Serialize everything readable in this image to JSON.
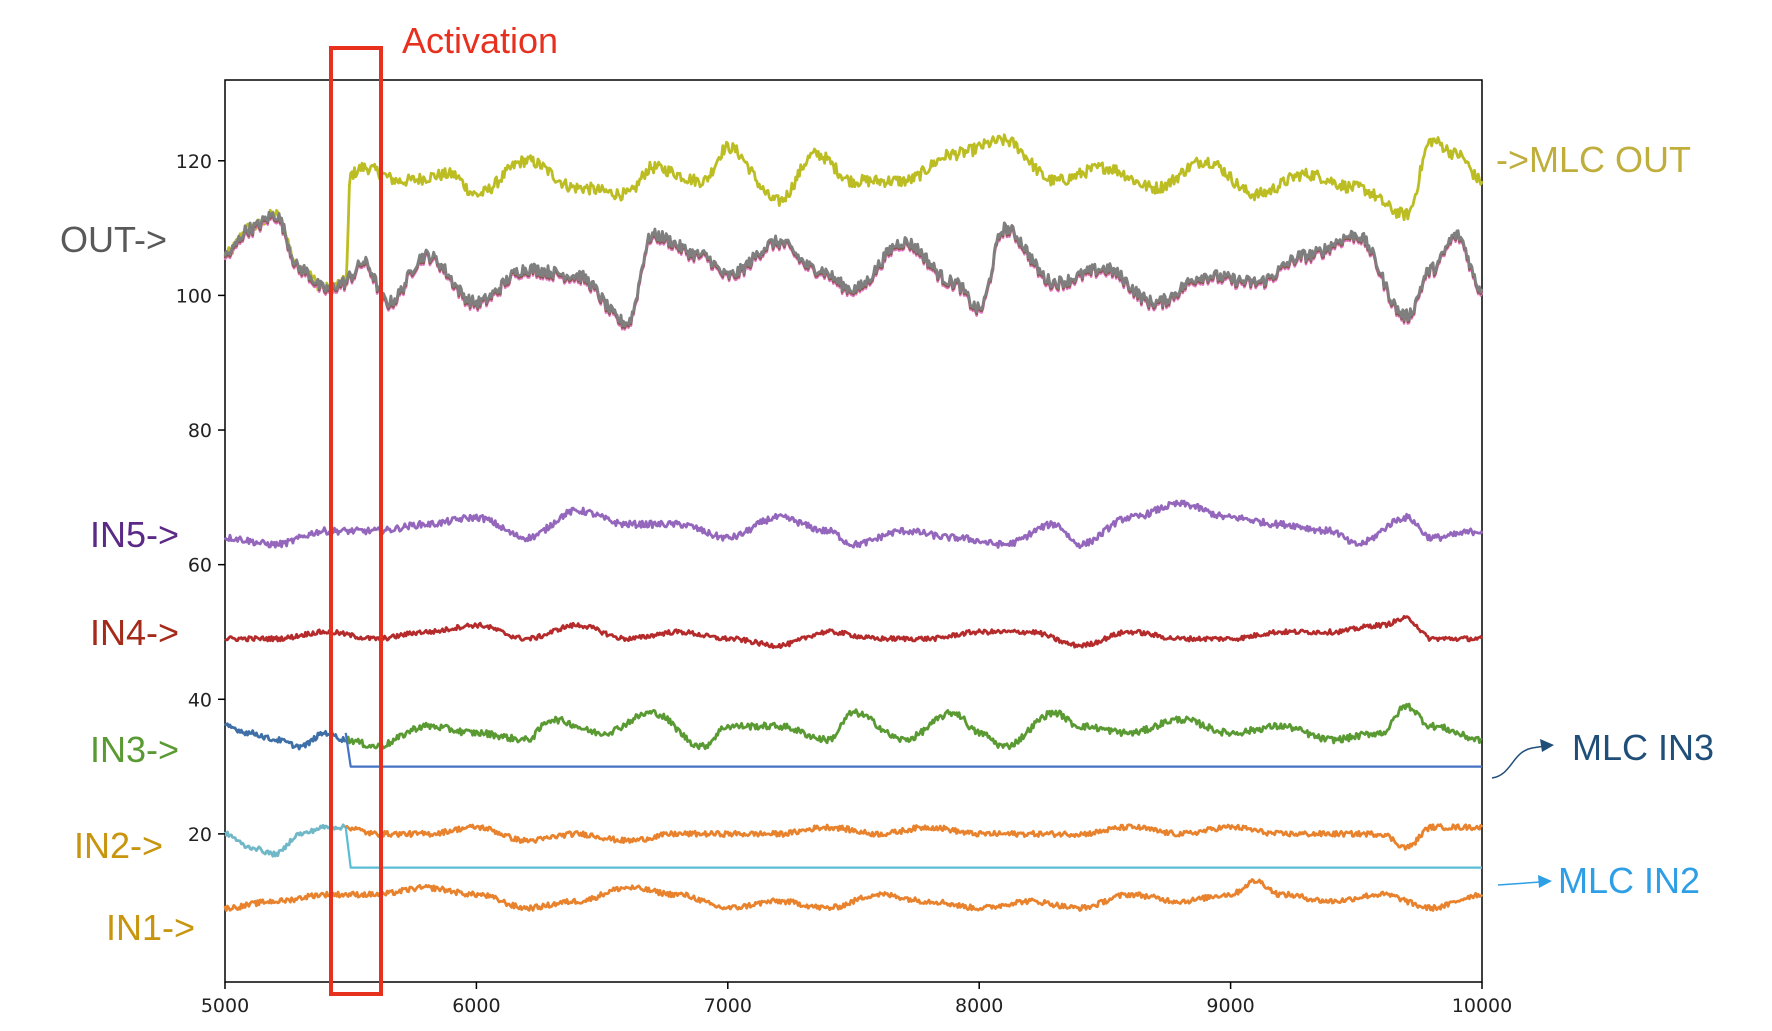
{
  "colors": {
    "mlc_out": "#bcbd22",
    "out": "#7f7f7f",
    "out_shadow_pink": "#e377c2",
    "out_shadow_brown": "#8c564b",
    "in5": "#9467bd",
    "in4": "#b52b2b",
    "in3": "#5a9a33",
    "in3_before": "#3e6fa6",
    "mlc_in3": "#4472c4",
    "in2": "#e8822c",
    "in2_before": "#70b8c8",
    "mlc_in2": "#5bbcd6",
    "in1": "#e8822c",
    "activation": "#e8301e",
    "label_mlc_out": "#bfae3c",
    "label_out": "#595959",
    "label_in5": "#5b2a86",
    "label_in4": "#a52a1a",
    "label_in3": "#5a9a33",
    "label_in2": "#c8950e",
    "label_in1": "#c8950e",
    "label_mlc_in3": "#1f4e79",
    "label_mlc_in2": "#2e9fe6"
  },
  "chart_data": {
    "type": "line",
    "xlim": [
      5000,
      10000
    ],
    "ylim": [
      -2,
      132
    ],
    "x_ticks": [
      5000,
      6000,
      7000,
      8000,
      9000,
      10000
    ],
    "y_ticks": [
      20,
      40,
      60,
      80,
      100,
      120
    ],
    "x_tick_labels": [
      "5000",
      "6000",
      "7000",
      "8000",
      "9000",
      "10000"
    ],
    "y_tick_labels": [
      "20",
      "40",
      "60",
      "80",
      "100",
      "120"
    ],
    "activation": {
      "label": "Activation",
      "x_start": 5420,
      "x_end": 5620
    },
    "series": [
      {
        "key": "mlc_out",
        "color_key": "mlc_out",
        "x": [
          5000,
          5100,
          5200,
          5300,
          5400,
          5480,
          5500,
          5550,
          5700,
          5900,
          6000,
          6200,
          6400,
          6600,
          6700,
          6900,
          7000,
          7200,
          7350,
          7500,
          7700,
          7900,
          8100,
          8300,
          8500,
          8700,
          8900,
          9100,
          9300,
          9500,
          9700,
          9800,
          9900,
          10000
        ],
        "y": [
          106,
          110,
          112,
          104,
          101,
          102,
          118,
          119,
          117,
          118,
          115,
          120,
          116,
          115,
          119,
          117,
          122,
          114,
          121,
          117,
          117,
          121,
          123,
          117,
          119,
          116,
          120,
          115,
          118,
          116,
          112,
          123,
          121,
          117
        ]
      },
      {
        "key": "out",
        "color_key": "out",
        "x": [
          5000,
          5100,
          5200,
          5300,
          5400,
          5480,
          5500,
          5550,
          5650,
          5800,
          6000,
          6200,
          6400,
          6600,
          6700,
          6900,
          7000,
          7200,
          7350,
          7500,
          7700,
          7900,
          8000,
          8100,
          8300,
          8500,
          8700,
          8900,
          9100,
          9300,
          9500,
          9700,
          9800,
          9900,
          10000
        ],
        "y": [
          106,
          110,
          112,
          104,
          101,
          102,
          103,
          105,
          99,
          106,
          99,
          104,
          103,
          96,
          109,
          106,
          103,
          108,
          104,
          101,
          108,
          102,
          98,
          110,
          102,
          104,
          99,
          103,
          102,
          106,
          109,
          97,
          104,
          109,
          101
        ]
      },
      {
        "key": "in5",
        "color_key": "in5",
        "x": [
          5000,
          5200,
          5400,
          5600,
          5800,
          6000,
          6200,
          6400,
          6600,
          6800,
          7000,
          7200,
          7400,
          7500,
          7700,
          7900,
          8100,
          8300,
          8400,
          8600,
          8800,
          9000,
          9200,
          9400,
          9500,
          9700,
          9800,
          10000
        ],
        "y": [
          64,
          63,
          65,
          65,
          66,
          67,
          64,
          68,
          66,
          66,
          64,
          67,
          65,
          63,
          65,
          64,
          63,
          66,
          63,
          67,
          69,
          67,
          66,
          65,
          63,
          67,
          64,
          65
        ]
      },
      {
        "key": "in4",
        "color_key": "in4",
        "x": [
          5000,
          5200,
          5400,
          5600,
          5800,
          6000,
          6200,
          6400,
          6600,
          6800,
          7000,
          7200,
          7400,
          7600,
          7800,
          8000,
          8200,
          8400,
          8600,
          8800,
          9000,
          9200,
          9400,
          9600,
          9700,
          9800,
          10000
        ],
        "y": [
          49,
          49,
          50,
          49,
          50,
          51,
          49,
          51,
          49,
          50,
          49,
          48,
          50,
          49,
          49,
          50,
          50,
          48,
          50,
          49,
          49,
          50,
          50,
          51,
          52,
          49,
          49
        ]
      },
      {
        "key": "in3_before",
        "color_key": "in3_before",
        "x": [
          5000,
          5100,
          5200,
          5300,
          5400,
          5480
        ],
        "y": [
          36,
          35,
          34,
          33,
          35,
          34
        ]
      },
      {
        "key": "in3",
        "color_key": "in3",
        "x": [
          5480,
          5600,
          5800,
          6000,
          6200,
          6300,
          6500,
          6700,
          6900,
          7000,
          7200,
          7400,
          7500,
          7700,
          7900,
          8000,
          8100,
          8300,
          8400,
          8600,
          8800,
          9000,
          9200,
          9400,
          9600,
          9700,
          9800,
          10000
        ],
        "y": [
          34,
          33,
          36,
          35,
          34,
          37,
          35,
          38,
          33,
          36,
          36,
          34,
          38,
          34,
          38,
          35,
          33,
          38,
          36,
          35,
          37,
          35,
          36,
          34,
          35,
          39,
          36,
          34
        ]
      },
      {
        "key": "mlc_in3",
        "color_key": "mlc_in3",
        "x": [
          5480,
          5500,
          10000
        ],
        "y": [
          35,
          30,
          30
        ]
      },
      {
        "key": "in2_before",
        "color_key": "in2_before",
        "x": [
          5000,
          5100,
          5200,
          5300,
          5400,
          5480
        ],
        "y": [
          20,
          18,
          17,
          20,
          21,
          21
        ]
      },
      {
        "key": "in2",
        "color_key": "in2",
        "x": [
          5480,
          5600,
          5800,
          6000,
          6200,
          6400,
          6600,
          6800,
          7000,
          7200,
          7400,
          7600,
          7800,
          8000,
          8200,
          8400,
          8600,
          8800,
          9000,
          9200,
          9400,
          9600,
          9700,
          9800,
          10000
        ],
        "y": [
          21,
          20,
          20,
          21,
          19,
          20,
          19,
          20,
          20,
          20,
          21,
          20,
          21,
          20,
          20,
          20,
          21,
          20,
          21,
          20,
          20,
          20,
          18,
          21,
          21
        ]
      },
      {
        "key": "mlc_in2",
        "color_key": "mlc_in2",
        "x": [
          5480,
          5500,
          10000
        ],
        "y": [
          21,
          15,
          15
        ]
      },
      {
        "key": "in1",
        "color_key": "in1",
        "x": [
          5000,
          5200,
          5400,
          5600,
          5800,
          6000,
          6200,
          6400,
          6600,
          6800,
          7000,
          7200,
          7400,
          7600,
          7800,
          8000,
          8200,
          8400,
          8600,
          8800,
          9000,
          9100,
          9200,
          9400,
          9600,
          9800,
          10000
        ],
        "y": [
          9,
          10,
          11,
          11,
          12,
          11,
          9,
          10,
          12,
          11,
          9,
          10,
          9,
          11,
          10,
          9,
          10,
          9,
          11,
          10,
          11,
          13,
          11,
          10,
          11,
          9,
          11
        ]
      }
    ],
    "series_labels": {
      "mlc_out": "->MLC OUT",
      "out": "OUT->",
      "in5": "IN5->",
      "in4": "IN4->",
      "in3": "IN3->",
      "in2": "IN2->",
      "in1": "IN1->",
      "mlc_in3": "MLC IN3",
      "mlc_in2": "MLC IN2"
    }
  }
}
